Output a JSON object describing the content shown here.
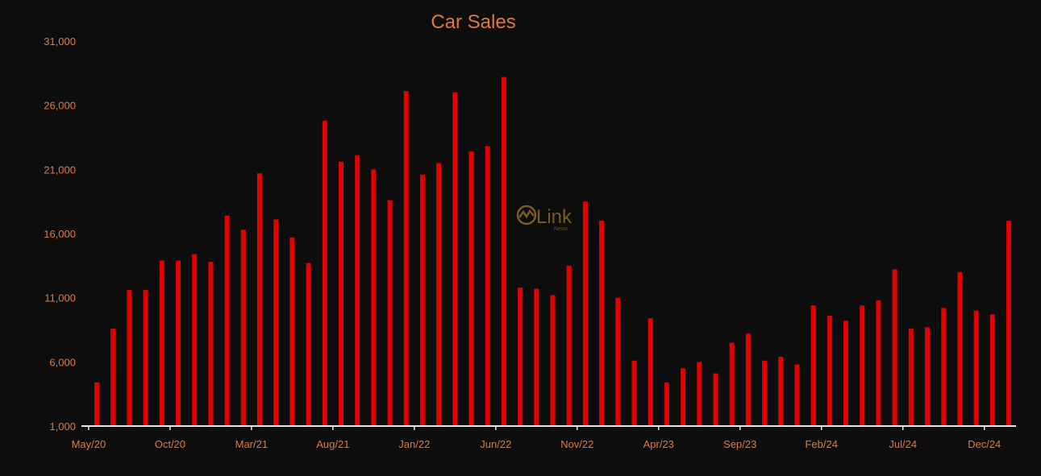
{
  "chart_data": {
    "type": "bar",
    "title": "Car Sales",
    "xlabel": "",
    "ylabel": "",
    "ylim": [
      1000,
      31000
    ],
    "y_ticks": [
      "1,000",
      "6,000",
      "11,000",
      "16,000",
      "21,000",
      "26,000",
      "31,000"
    ],
    "y_tick_values": [
      1000,
      6000,
      11000,
      16000,
      21000,
      26000,
      31000
    ],
    "x_tick_labels": [
      "May/20",
      "Oct/20",
      "Mar/21",
      "Aug/21",
      "Jan/22",
      "Jun/22",
      "Nov/22",
      "Apr/23",
      "Sep/23",
      "Feb/24",
      "Jul/24",
      "Dec/24"
    ],
    "grid": false,
    "legend": "none",
    "bar_color": "#e30000",
    "categories": [
      "May/20",
      "Jun/20",
      "Jul/20",
      "Aug/20",
      "Sep/20",
      "Oct/20",
      "Nov/20",
      "Dec/20",
      "Jan/21",
      "Feb/21",
      "Mar/21",
      "Apr/21",
      "May/21",
      "Jun/21",
      "Jul/21",
      "Aug/21",
      "Sep/21",
      "Oct/21",
      "Nov/21",
      "Dec/21",
      "Jan/22",
      "Feb/22",
      "Mar/22",
      "Apr/22",
      "May/22",
      "Jun/22",
      "Jul/22",
      "Aug/22",
      "Sep/22",
      "Oct/22",
      "Nov/22",
      "Dec/22",
      "Jan/23",
      "Feb/23",
      "Mar/23",
      "Apr/23",
      "May/23",
      "Jun/23",
      "Jul/23",
      "Aug/23",
      "Sep/23",
      "Oct/23",
      "Nov/23",
      "Dec/23",
      "Jan/24",
      "Feb/24",
      "Mar/24",
      "Apr/24",
      "May/24",
      "Jun/24",
      "Jul/24",
      "Aug/24",
      "Sep/24",
      "Oct/24",
      "Nov/24",
      "Dec/24",
      "Jan/25"
    ],
    "values": [
      4400,
      8600,
      11600,
      11600,
      13900,
      13900,
      14400,
      13800,
      17400,
      16300,
      20700,
      17100,
      15700,
      13700,
      24800,
      21600,
      22100,
      21000,
      18600,
      27100,
      20600,
      21500,
      27000,
      22400,
      22800,
      28200,
      11800,
      11700,
      11200,
      13500,
      18500,
      17000,
      11000,
      6100,
      9400,
      4400,
      5500,
      6000,
      5100,
      7500,
      8200,
      6100,
      6400,
      5800,
      10400,
      9600,
      9200,
      10400,
      10800,
      13200,
      8600,
      8700,
      10200,
      13000,
      10000,
      9700,
      17000
    ]
  },
  "watermark": {
    "name": "Link",
    "sub": "News"
  }
}
